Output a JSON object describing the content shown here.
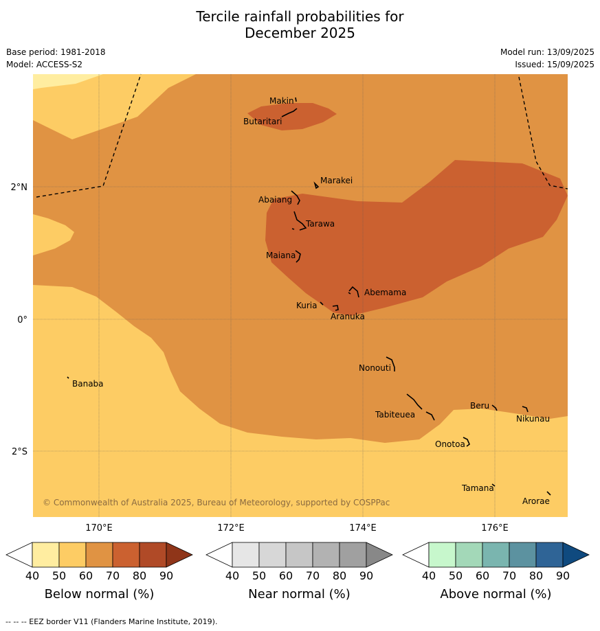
{
  "title": {
    "line1": "Tercile rainfall probabilities for",
    "line2": "December 2025"
  },
  "meta": {
    "base_period": "Base period: 1981-2018",
    "model": "Model: ACCESS-S2",
    "model_run": "Model run: 13/09/2025",
    "issued": "Issued: 15/09/2025"
  },
  "map": {
    "lat_labels": [
      "2°N",
      "0°",
      "2°S"
    ],
    "lon_labels": [
      "170°E",
      "172°E",
      "174°E",
      "176°E"
    ],
    "places": [
      "Makin",
      "Butaritari",
      "Marakei",
      "Abaiang",
      "Tarawa",
      "Maiana",
      "Abemama",
      "Kuria",
      "Aranuka",
      "Banaba",
      "Nonouti",
      "Beru",
      "Nikunau",
      "Tabiteuea",
      "Onotoa",
      "Tamana",
      "Arorae"
    ],
    "copyright": "© Commonwealth of Australia 2025, Bureau of Meteorology, supported by COSPPac",
    "category_colors": {
      "below_40_50": "#ffeda0",
      "below_50_60": "#fdcc64",
      "below_60_70": "#e09343",
      "below_70_80": "#cb6130",
      "background": "#fdcc64"
    }
  },
  "colorbars": [
    {
      "label": "Below normal (%)",
      "ticks": [
        "40",
        "50",
        "60",
        "70",
        "80",
        "90"
      ],
      "colors": [
        "#ffffff",
        "#ffeda0",
        "#fdcc64",
        "#e09343",
        "#cb6130",
        "#b04a27",
        "#8f3519"
      ]
    },
    {
      "label": "Near normal (%)",
      "ticks": [
        "40",
        "50",
        "60",
        "70",
        "80",
        "90"
      ],
      "colors": [
        "#ffffff",
        "#e6e6e6",
        "#d7d7d7",
        "#c6c6c6",
        "#b2b2b2",
        "#a0a0a0",
        "#888888"
      ]
    },
    {
      "label": "Above normal (%)",
      "ticks": [
        "40",
        "50",
        "60",
        "70",
        "80",
        "90"
      ],
      "colors": [
        "#ffffff",
        "#c7f7cc",
        "#a3d8b8",
        "#7ab5af",
        "#5c92a0",
        "#2f6496",
        "#0f4a7f"
      ]
    }
  ],
  "footer": "--  --  -- EEZ border V11 (Flanders Marine Institute, 2019)."
}
